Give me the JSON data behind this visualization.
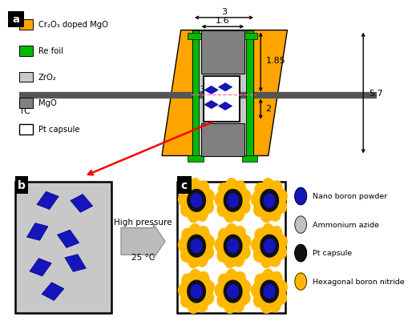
{
  "bg_color": "#ffffff",
  "orange": "#FFA500",
  "green": "#00BB00",
  "light_gray": "#C8C8C8",
  "dark_gray": "#808080",
  "blue": "#1515BB",
  "yellow": "#FFB800",
  "tc_bar_color": "#555555",
  "pink_dashed": "#FF69B4",
  "legend_a": [
    {
      "label": "Cr₂O₃ doped MgO",
      "color": "#FFA500"
    },
    {
      "label": "Re foil",
      "color": "#00BB00"
    },
    {
      "label": "ZrO₂",
      "color": "#C8C8C8"
    },
    {
      "label": "MgO",
      "color": "#808080"
    }
  ],
  "legend_bc": [
    {
      "label": "Nano boron powder",
      "color": "#1515BB"
    },
    {
      "label": "Ammonium azide",
      "color": "#C0C0C0"
    },
    {
      "label": "Pt capsule",
      "color": "#111111"
    },
    {
      "label": "Hexagonal boron nitride",
      "color": "#FFB800"
    }
  ],
  "label_a": "a",
  "label_b": "b",
  "label_c": "c",
  "tc_label": "TC",
  "pt_label": "Pt capsule",
  "hp_label1": "High pressure",
  "hp_label2": "25 °C",
  "dims": [
    "3",
    "1.6",
    "1.85",
    "2",
    "0.35",
    "5.7"
  ]
}
